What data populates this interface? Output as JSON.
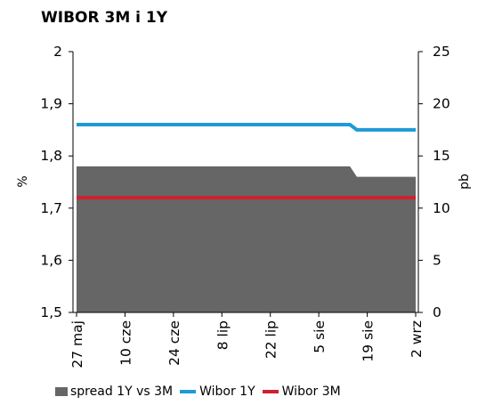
{
  "title": "WIBOR 3M i 1Y",
  "colors": {
    "spread": "#666666",
    "wibor1y": "#1f9ad6",
    "wibor3m": "#d0202e",
    "axis": "#000000"
  },
  "chart_data": {
    "type": "line",
    "title": "WIBOR 3M i 1Y",
    "ylabel": "%",
    "y2label": "pb",
    "ylim": [
      1.5,
      2.0
    ],
    "y2lim": [
      0,
      25
    ],
    "yticks": [
      "1,5",
      "1,6",
      "1,7",
      "1,8",
      "1,9",
      "2"
    ],
    "y2ticks": [
      "0",
      "5",
      "10",
      "15",
      "20",
      "25"
    ],
    "categories": [
      "27 maj",
      "10 cze",
      "24 cze",
      "8 lip",
      "22 lip",
      "5 sie",
      "19 sie",
      "2 wrz"
    ],
    "legend_position": "bottom",
    "grid": false,
    "series": [
      {
        "name": "spread 1Y vs 3M",
        "type": "area",
        "axis": "right",
        "x": [
          "27 maj",
          "14 sie",
          "16 sie",
          "2 wrz"
        ],
        "values": [
          14,
          14,
          13,
          13
        ]
      },
      {
        "name": "Wibor 1Y",
        "type": "line",
        "axis": "left",
        "x": [
          "27 maj",
          "14 sie",
          "16 sie",
          "2 wrz"
        ],
        "values": [
          1.86,
          1.86,
          1.85,
          1.85
        ]
      },
      {
        "name": "Wibor 3M",
        "type": "line",
        "axis": "left",
        "x": [
          "27 maj",
          "2 wrz"
        ],
        "values": [
          1.72,
          1.72
        ]
      }
    ]
  }
}
